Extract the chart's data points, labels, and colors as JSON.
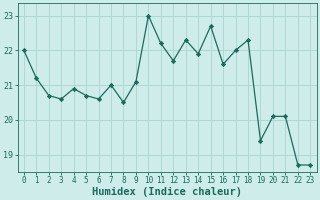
{
  "x": [
    0,
    1,
    2,
    3,
    4,
    5,
    6,
    7,
    8,
    9,
    10,
    11,
    12,
    13,
    14,
    15,
    16,
    17,
    18,
    19,
    20,
    21,
    22,
    23
  ],
  "y": [
    22.0,
    21.2,
    20.7,
    20.6,
    20.9,
    20.7,
    20.6,
    21.0,
    20.5,
    21.1,
    23.0,
    22.2,
    21.7,
    22.3,
    21.9,
    22.7,
    21.6,
    22.0,
    22.3,
    19.4,
    20.1,
    20.1,
    18.7,
    18.7
  ],
  "line_color": "#1a6b5e",
  "marker": "D",
  "markersize": 2.2,
  "linewidth": 0.9,
  "bg_color": "#ceecea",
  "grid_color": "#aad4d0",
  "xlabel": "Humidex (Indice chaleur)",
  "xlabel_fontsize": 7.5,
  "xlabel_color": "#1a6b5e",
  "tick_color": "#1a6b5e",
  "tick_fontsize": 5.5,
  "ylabel_ticks": [
    19,
    20,
    21,
    22,
    23
  ],
  "xlim": [
    -0.5,
    23.5
  ],
  "ylim": [
    18.5,
    23.35
  ],
  "figsize": [
    3.2,
    2.0
  ],
  "dpi": 100
}
